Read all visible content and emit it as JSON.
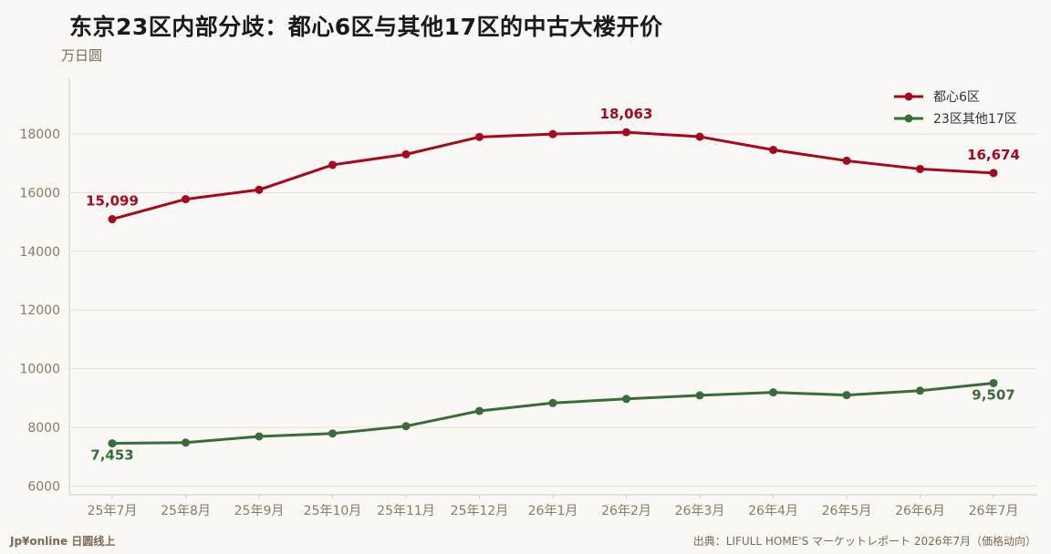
{
  "title": "东京23区内部分歧：都心6区与其他17区的中古大楼开价",
  "unit": "万日圆",
  "brand": "Jp¥online 日圆线上",
  "source": "出典：LIFULL HOME'S マーケットレポート 2026年7月（価格动向）",
  "colors": {
    "series1": "#a8081e",
    "series2": "#3a6b3a",
    "grid": "#eedcd6",
    "axis": "#d8c8b8"
  },
  "chart_data": {
    "type": "line",
    "categories": [
      "25年7月",
      "25年8月",
      "25年9月",
      "25年10月",
      "25年11月",
      "25年12月",
      "26年1月",
      "26年2月",
      "26年3月",
      "26年4月",
      "26年5月",
      "26年6月",
      "26年7月"
    ],
    "ylim": [
      5700,
      19900
    ],
    "yticks": [
      6000,
      8000,
      10000,
      12000,
      14000,
      16000,
      18000
    ],
    "grid": true,
    "legend": "top-right",
    "series": [
      {
        "name": "都心6区",
        "values": [
          15099,
          15780,
          16100,
          16950,
          17310,
          17900,
          18000,
          18063,
          17910,
          17460,
          17090,
          16810,
          16674
        ],
        "labels": [
          {
            "index": 0,
            "text": "15,099"
          },
          {
            "index": 7,
            "text": "18,063"
          },
          {
            "index": 12,
            "text": "16,674"
          }
        ]
      },
      {
        "name": "23区其他17区",
        "values": [
          7453,
          7480,
          7690,
          7790,
          8040,
          8560,
          8830,
          8970,
          9090,
          9190,
          9100,
          9250,
          9507
        ],
        "labels": [
          {
            "index": 0,
            "text": "7,453"
          },
          {
            "index": 12,
            "text": "9,507"
          }
        ]
      }
    ]
  }
}
